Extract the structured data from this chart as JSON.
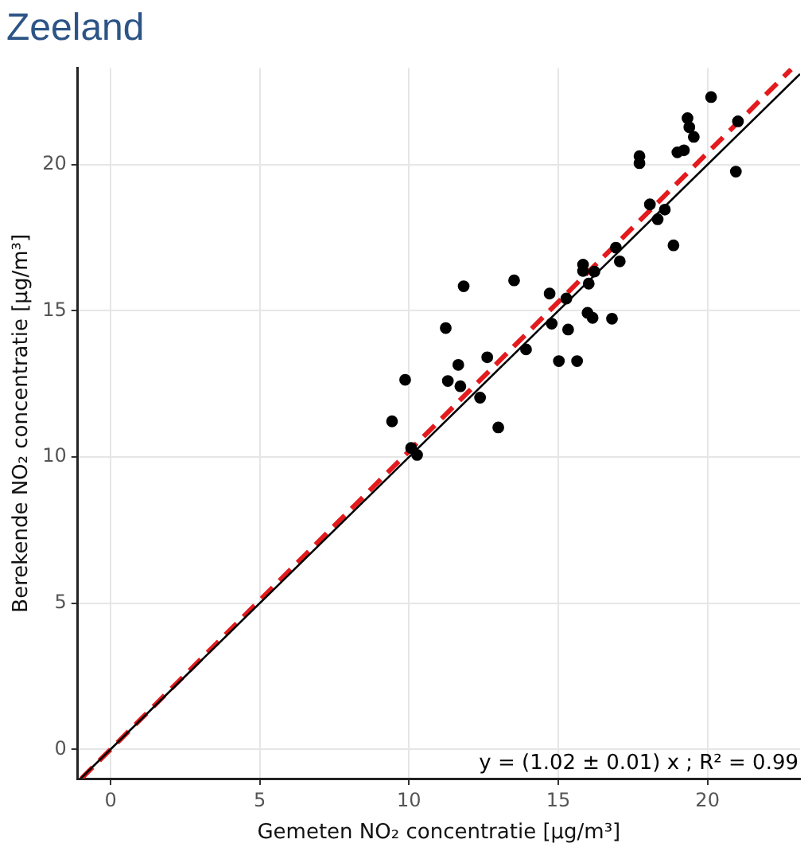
{
  "chart_data": {
    "type": "scatter",
    "title": "Zeeland",
    "xlabel": "Gemeten NO₂ concentratie [µg/m³]",
    "ylabel": "Berekende NO₂ concentratie [µg/m³]",
    "xlim": [
      -1.1,
      23.1
    ],
    "ylim": [
      -1,
      23.3
    ],
    "xticks": [
      0,
      5,
      10,
      15,
      20
    ],
    "yticks": [
      0,
      5,
      10,
      15,
      20
    ],
    "grid": true,
    "legend": false,
    "annotations": [
      "y = (1.02 ± 0.01) x ; R² = 0.99"
    ],
    "series": [
      {
        "type": "scatter",
        "color": "#000000",
        "marker": "circle",
        "x": [
          9.43,
          9.87,
          10.07,
          10.27,
          11.23,
          11.83,
          11.3,
          11.65,
          11.72,
          12.62,
          12.38,
          12.99,
          13.52,
          13.92,
          14.71,
          14.78,
          15.02,
          15.33,
          15.63,
          15.27,
          15.83,
          15.83,
          15.98,
          16.15,
          16.02,
          16.21,
          16.8,
          16.93,
          17.06,
          18.07,
          18.33,
          18.57,
          18.86,
          17.72,
          17.72,
          18.99,
          19.21,
          19.33,
          19.39,
          19.54,
          20.12,
          20.95,
          21.02
        ],
        "values": [
          11.22,
          12.64,
          10.31,
          10.07,
          14.41,
          15.84,
          12.6,
          13.15,
          12.42,
          13.41,
          12.03,
          11.01,
          16.04,
          13.68,
          15.59,
          14.56,
          13.28,
          14.36,
          13.28,
          15.42,
          16.58,
          16.36,
          14.93,
          14.76,
          15.93,
          16.34,
          14.73,
          17.16,
          16.69,
          18.64,
          18.13,
          18.46,
          17.24,
          20.29,
          20.05,
          20.42,
          20.49,
          21.59,
          21.28,
          20.95,
          22.31,
          19.76,
          21.48
        ]
      },
      {
        "type": "line",
        "color": "#000000",
        "marker": "none",
        "line_style": "solid",
        "x": [
          -1,
          23.1
        ],
        "values": [
          -1,
          23.1
        ]
      },
      {
        "type": "line",
        "color": "#e41a1c",
        "marker": "none",
        "line_style": "dashed",
        "x": [
          -0.98,
          22.8
        ],
        "values": [
          -1.0,
          23.26
        ]
      }
    ]
  }
}
